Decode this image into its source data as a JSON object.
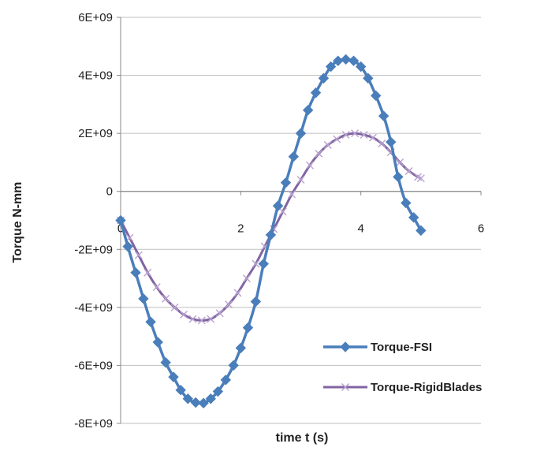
{
  "chart_data": {
    "type": "line",
    "title": "",
    "xlabel": "time t (s)",
    "ylabel": "Torque N-mm",
    "xlim": [
      0,
      6
    ],
    "ylim": [
      -8000000000,
      6000000000
    ],
    "x_ticks": [
      0,
      2,
      4,
      6
    ],
    "x_tick_labels": [
      "0",
      "2",
      "4",
      "6"
    ],
    "y_ticks": [
      -8000000000,
      -6000000000,
      -4000000000,
      -2000000000,
      0,
      2000000000,
      4000000000,
      6000000000
    ],
    "y_tick_labels": [
      "-8E+09",
      "-6E+09",
      "-4E+09",
      "-2E+09",
      "0",
      "2E+09",
      "4E+09",
      "6E+09"
    ],
    "grid": "horizontal",
    "legend_position": "bottom-right",
    "series": [
      {
        "name": "Torque-FSI",
        "color": "#4a7ebb",
        "marker": "diamond",
        "x": [
          0.0,
          0.12,
          0.25,
          0.38,
          0.5,
          0.62,
          0.75,
          0.88,
          1.0,
          1.12,
          1.25,
          1.38,
          1.5,
          1.62,
          1.75,
          1.88,
          2.0,
          2.12,
          2.25,
          2.38,
          2.5,
          2.62,
          2.75,
          2.88,
          3.0,
          3.12,
          3.25,
          3.38,
          3.5,
          3.62,
          3.75,
          3.88,
          4.0,
          4.12,
          4.25,
          4.38,
          4.5,
          4.62,
          4.75,
          4.88,
          5.0
        ],
        "y": [
          -1000000000,
          -1900000000,
          -2800000000,
          -3700000000,
          -4500000000,
          -5200000000,
          -5900000000,
          -6400000000,
          -6850000000,
          -7150000000,
          -7280000000,
          -7300000000,
          -7150000000,
          -6900000000,
          -6500000000,
          -6000000000,
          -5400000000,
          -4700000000,
          -3800000000,
          -2500000000,
          -1500000000,
          -500000000,
          300000000,
          1200000000,
          2000000000,
          2800000000,
          3400000000,
          3900000000,
          4300000000,
          4500000000,
          4550000000,
          4500000000,
          4300000000,
          3900000000,
          3300000000,
          2600000000,
          1700000000,
          500000000,
          -400000000,
          -900000000,
          -1350000000
        ]
      },
      {
        "name": "Torque-RigidBlades",
        "color": "#8064a2",
        "marker": "x",
        "x": [
          0.0,
          0.15,
          0.3,
          0.45,
          0.6,
          0.75,
          0.9,
          1.05,
          1.2,
          1.35,
          1.5,
          1.65,
          1.8,
          1.95,
          2.1,
          2.25,
          2.4,
          2.55,
          2.7,
          2.85,
          3.0,
          3.15,
          3.3,
          3.45,
          3.6,
          3.75,
          3.9,
          4.05,
          4.2,
          4.35,
          4.5,
          4.65,
          4.8,
          4.95,
          5.0
        ],
        "y": [
          -1000000000,
          -1600000000,
          -2200000000,
          -2800000000,
          -3300000000,
          -3700000000,
          -4000000000,
          -4250000000,
          -4400000000,
          -4450000000,
          -4400000000,
          -4200000000,
          -3900000000,
          -3500000000,
          -3000000000,
          -2500000000,
          -1900000000,
          -1300000000,
          -700000000,
          -100000000,
          400000000,
          900000000,
          1300000000,
          1600000000,
          1800000000,
          1950000000,
          2000000000,
          1950000000,
          1850000000,
          1650000000,
          1350000000,
          1000000000,
          700000000,
          500000000,
          450000000
        ]
      }
    ]
  }
}
